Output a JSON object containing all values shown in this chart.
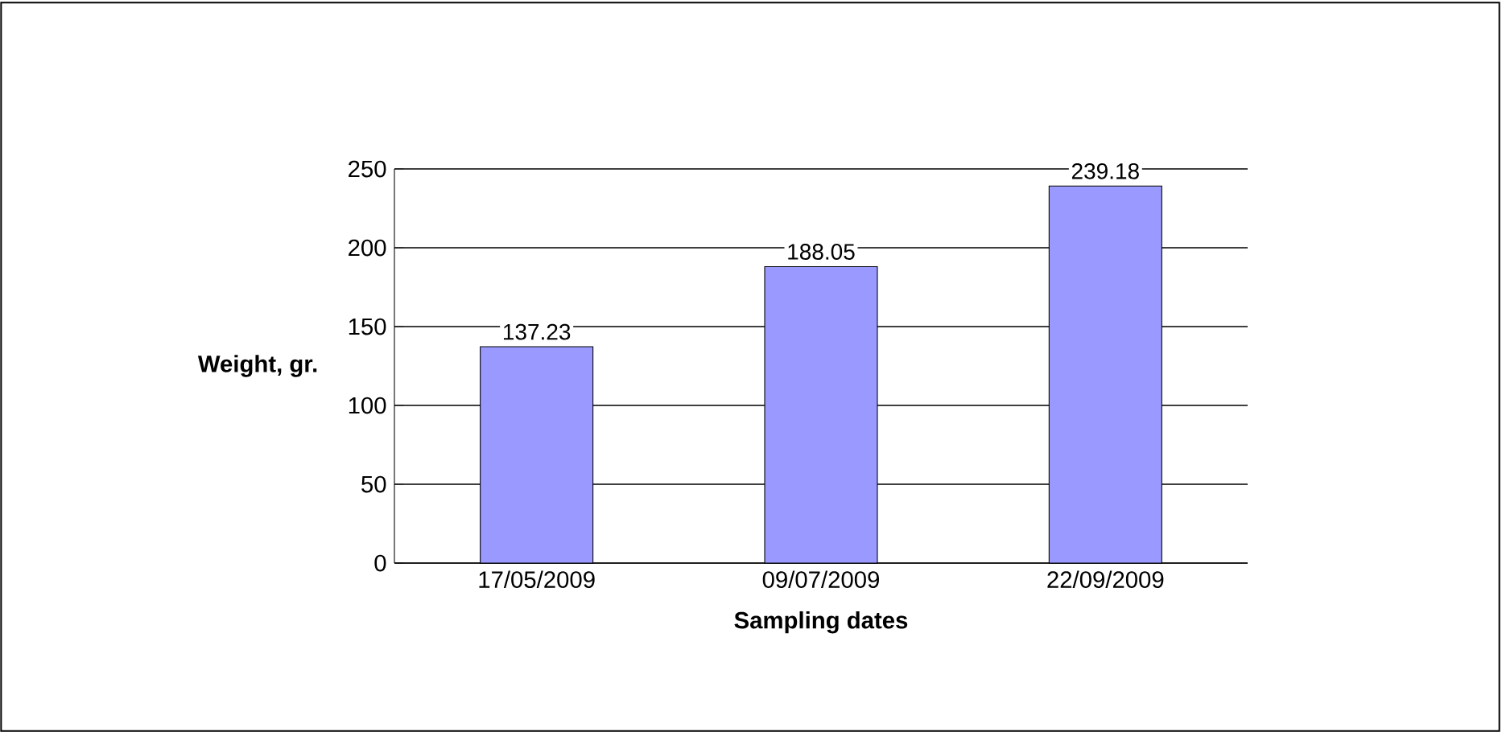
{
  "chart_data": {
    "type": "bar",
    "xlabel": "Sampling dates",
    "ylabel": "Weight, gr.",
    "categories": [
      "17/05/2009",
      "09/07/2009",
      "22/09/2009"
    ],
    "values": [
      137.23,
      188.05,
      239.18
    ],
    "color": "#9999ff",
    "ylim": [
      0,
      250
    ],
    "yticks": [
      0,
      50,
      100,
      150,
      200,
      250
    ],
    "grid": "y",
    "data_labels": true
  }
}
